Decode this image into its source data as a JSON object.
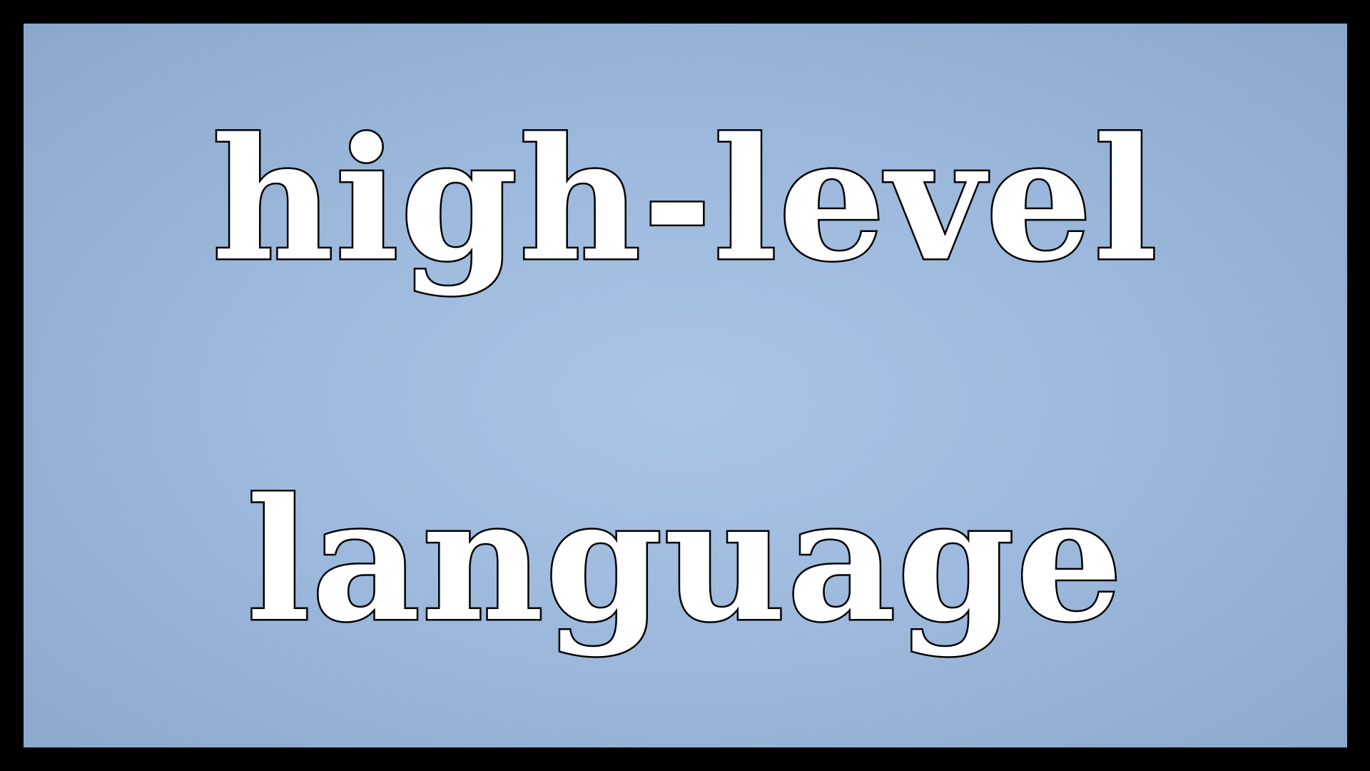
{
  "title": {
    "line1": "high-level",
    "line2": "language"
  },
  "colors": {
    "border": "#000000",
    "background_center": "#a9c4e6",
    "background_edge": "#8aa8cb",
    "text_fill": "#ffffff",
    "text_outline": "#000000"
  }
}
